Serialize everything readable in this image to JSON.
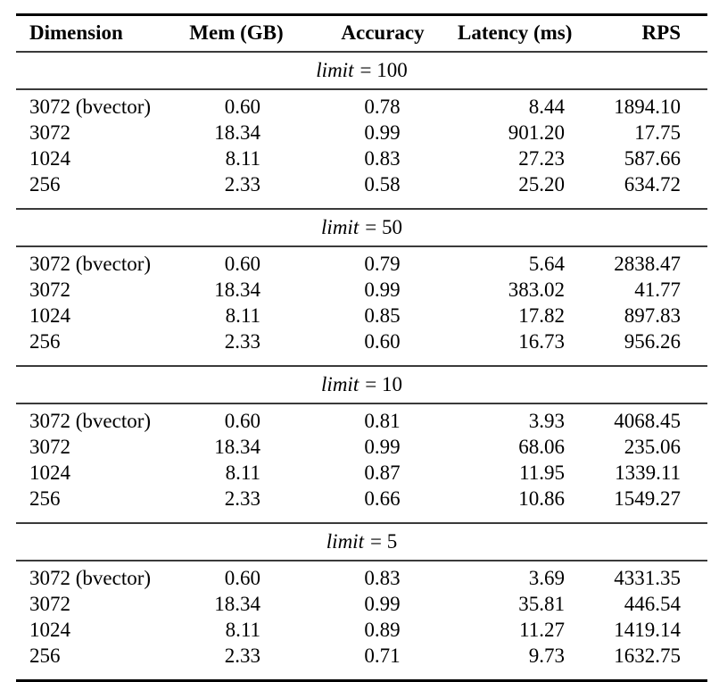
{
  "page": {
    "background_color": "#ffffff",
    "text_color": "#000000",
    "toprule_color": "#000000",
    "midrule_color": "#3a3a3a"
  },
  "table": {
    "columns": [
      "Dimension",
      "Mem (GB)",
      "Accuracy",
      "Latency (ms)",
      "RPS"
    ],
    "sections": [
      {
        "limit_var": "limit",
        "limit_rest": "= 100",
        "rows": [
          [
            "3072 (bvector)",
            "0.60",
            "0.78",
            "8.44",
            "1894.10"
          ],
          [
            "3072",
            "18.34",
            "0.99",
            "901.20",
            "17.75"
          ],
          [
            "1024",
            "8.11",
            "0.83",
            "27.23",
            "587.66"
          ],
          [
            "256",
            "2.33",
            "0.58",
            "25.20",
            "634.72"
          ]
        ]
      },
      {
        "limit_var": "limit",
        "limit_rest": "= 50",
        "rows": [
          [
            "3072 (bvector)",
            "0.60",
            "0.79",
            "5.64",
            "2838.47"
          ],
          [
            "3072",
            "18.34",
            "0.99",
            "383.02",
            "41.77"
          ],
          [
            "1024",
            "8.11",
            "0.85",
            "17.82",
            "897.83"
          ],
          [
            "256",
            "2.33",
            "0.60",
            "16.73",
            "956.26"
          ]
        ]
      },
      {
        "limit_var": "limit",
        "limit_rest": "= 10",
        "rows": [
          [
            "3072 (bvector)",
            "0.60",
            "0.81",
            "3.93",
            "4068.45"
          ],
          [
            "3072",
            "18.34",
            "0.99",
            "68.06",
            "235.06"
          ],
          [
            "1024",
            "8.11",
            "0.87",
            "11.95",
            "1339.11"
          ],
          [
            "256",
            "2.33",
            "0.66",
            "10.86",
            "1549.27"
          ]
        ]
      },
      {
        "limit_var": "limit",
        "limit_rest": "= 5",
        "rows": [
          [
            "3072 (bvector)",
            "0.60",
            "0.83",
            "3.69",
            "4331.35"
          ],
          [
            "3072",
            "18.34",
            "0.99",
            "35.81",
            "446.54"
          ],
          [
            "1024",
            "8.11",
            "0.89",
            "11.27",
            "1419.14"
          ],
          [
            "256",
            "2.33",
            "0.71",
            "9.73",
            "1632.75"
          ]
        ]
      }
    ]
  }
}
